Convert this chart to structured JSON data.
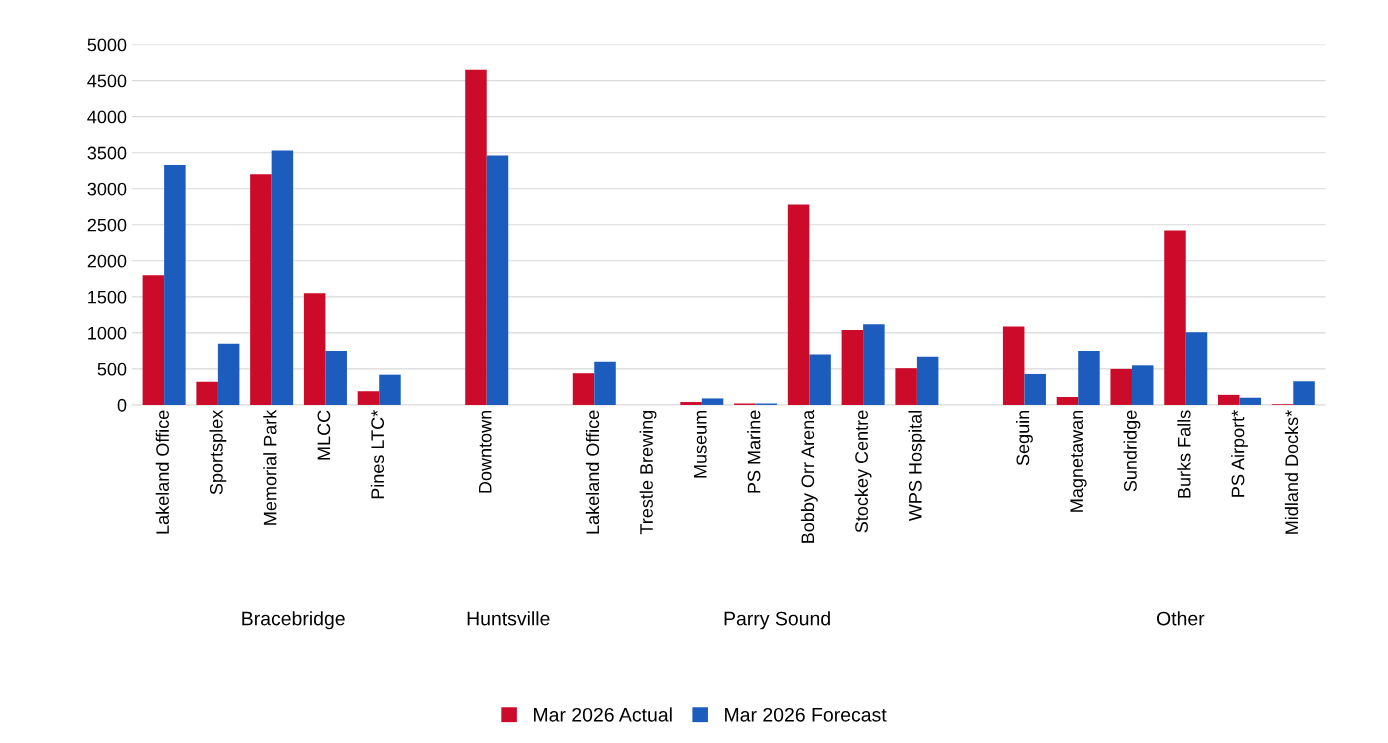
{
  "chart_data": {
    "type": "bar",
    "categories": [
      "Lakeland Office",
      "Sportsplex",
      "Memorial Park",
      "MLCC",
      "Pines LTC*",
      null,
      "Downtown",
      null,
      "Lakeland Office",
      "Trestle Brewing",
      "Museum",
      "PS Marine",
      "Bobby Orr Arena",
      "Stockey Centre",
      "WPS Hospital",
      null,
      "Seguin",
      "Magnetawan",
      "Sundridge",
      "Burks Falls",
      "PS Airport*",
      "Midland Docks*"
    ],
    "series": [
      {
        "name": "Mar 2026 Actual",
        "color": "#cc0a2a",
        "values": [
          1800,
          320,
          3200,
          1550,
          190,
          null,
          4650,
          null,
          440,
          0,
          40,
          20,
          2780,
          1040,
          510,
          null,
          1090,
          110,
          500,
          2420,
          140,
          10
        ]
      },
      {
        "name": "Mar 2026 Forecast",
        "color": "#1c5cbc",
        "values": [
          3330,
          850,
          3530,
          750,
          420,
          null,
          3460,
          null,
          600,
          0,
          90,
          20,
          700,
          1120,
          670,
          null,
          430,
          750,
          550,
          1010,
          100,
          330
        ]
      }
    ],
    "ylim": [
      0,
      5000
    ],
    "yticks": [
      0,
      500,
      1000,
      1500,
      2000,
      2500,
      3000,
      3500,
      4000,
      4500,
      5000
    ],
    "grid": "y",
    "legend": "bottom",
    "annotations": [
      "Bracebridge",
      "Huntsville",
      "Parry Sound",
      "Other"
    ]
  }
}
